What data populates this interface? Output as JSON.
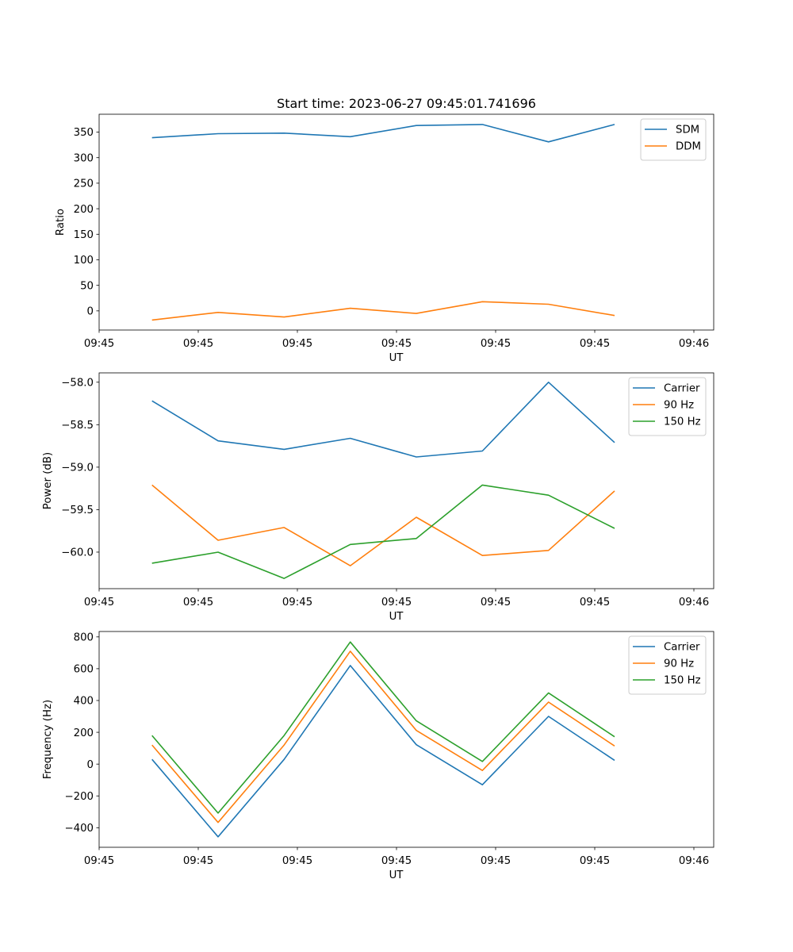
{
  "figure": {
    "title": "Start time: 2023-06-27 09:45:01.741696"
  },
  "chart_data": [
    {
      "type": "line",
      "title": "Start time: 2023-06-27 09:45:01.741696",
      "xlabel": "UT",
      "ylabel": "Ratio",
      "x": [
        1,
        2,
        3,
        4,
        5,
        6,
        7,
        8
      ],
      "xlim": [
        0.2,
        9.5
      ],
      "ylim": [
        -37.5,
        385
      ],
      "yticks": [
        0,
        50,
        100,
        150,
        200,
        250,
        300,
        350
      ],
      "ytick_labels": [
        "0",
        "50",
        "100",
        "150",
        "200",
        "250",
        "300",
        "350"
      ],
      "xticks": [
        0.2,
        1.7,
        3.2,
        4.7,
        6.2,
        7.7,
        9.2
      ],
      "xtick_labels": [
        "09:45",
        "09:45",
        "09:45",
        "09:45",
        "09:45",
        "09:45",
        "09:46"
      ],
      "legend_position": "top-right",
      "grid": false,
      "series": [
        {
          "name": "SDM",
          "color": "#1f77b4",
          "values": [
            339,
            347,
            348,
            341,
            363,
            365,
            331,
            365
          ]
        },
        {
          "name": "DDM",
          "color": "#ff7f0e",
          "values": [
            -18,
            -3,
            -12,
            5,
            -5,
            18,
            13,
            -9
          ]
        }
      ]
    },
    {
      "type": "line",
      "title": "",
      "xlabel": "UT",
      "ylabel": "Power (dB)",
      "x": [
        1,
        2,
        3,
        4,
        5,
        6,
        7,
        8
      ],
      "xlim": [
        0.2,
        9.5
      ],
      "ylim": [
        -60.43,
        -57.89
      ],
      "yticks": [
        -60.0,
        -59.5,
        -59.0,
        -58.5,
        -58.0
      ],
      "ytick_labels": [
        "−60.0",
        "−59.5",
        "−59.0",
        "−58.5",
        "−58.0"
      ],
      "xticks": [
        0.2,
        1.7,
        3.2,
        4.7,
        6.2,
        7.7,
        9.2
      ],
      "xtick_labels": [
        "09:45",
        "09:45",
        "09:45",
        "09:45",
        "09:45",
        "09:45",
        "09:46"
      ],
      "legend_position": "top-right",
      "grid": false,
      "series": [
        {
          "name": "Carrier",
          "color": "#1f77b4",
          "values": [
            -58.22,
            -58.69,
            -58.79,
            -58.66,
            -58.88,
            -58.81,
            -58.0,
            -58.71
          ]
        },
        {
          "name": "90 Hz",
          "color": "#ff7f0e",
          "values": [
            -59.21,
            -59.86,
            -59.71,
            -60.16,
            -59.59,
            -60.04,
            -59.98,
            -59.28
          ]
        },
        {
          "name": "150 Hz",
          "color": "#2ca02c",
          "values": [
            -60.13,
            -60.0,
            -60.31,
            -59.91,
            -59.84,
            -59.21,
            -59.33,
            -59.72
          ]
        }
      ]
    },
    {
      "type": "line",
      "title": "",
      "xlabel": "UT",
      "ylabel": "Frequency (Hz)",
      "x": [
        1,
        2,
        3,
        4,
        5,
        6,
        7,
        8
      ],
      "xlim": [
        0.2,
        9.5
      ],
      "ylim": [
        -523,
        834
      ],
      "yticks": [
        -400,
        -200,
        0,
        200,
        400,
        600,
        800
      ],
      "ytick_labels": [
        "−400",
        "−200",
        "0",
        "200",
        "400",
        "600",
        "800"
      ],
      "xticks": [
        0.2,
        1.7,
        3.2,
        4.7,
        6.2,
        7.7,
        9.2
      ],
      "xtick_labels": [
        "09:45",
        "09:45",
        "09:45",
        "09:45",
        "09:45",
        "09:45",
        "09:46"
      ],
      "legend_position": "top-right",
      "grid": false,
      "series": [
        {
          "name": "Carrier",
          "color": "#1f77b4",
          "values": [
            30,
            -457,
            30,
            620,
            122,
            -130,
            300,
            24
          ]
        },
        {
          "name": "90 Hz",
          "color": "#ff7f0e",
          "values": [
            120,
            -367,
            120,
            710,
            212,
            -40,
            390,
            114
          ]
        },
        {
          "name": "150 Hz",
          "color": "#2ca02c",
          "values": [
            180,
            -308,
            180,
            768,
            272,
            17,
            448,
            172
          ]
        }
      ]
    }
  ]
}
